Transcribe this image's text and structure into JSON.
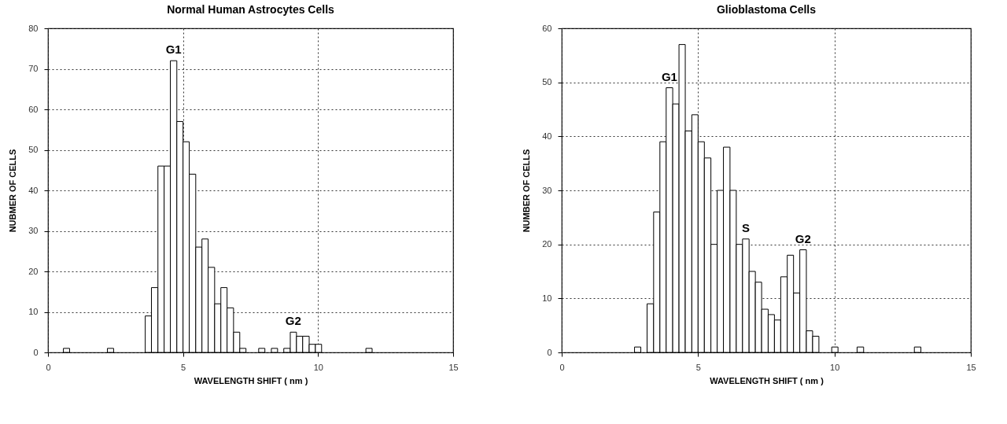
{
  "chart_data": [
    {
      "type": "histogram",
      "title": "Normal Human Astrocytes Cells",
      "xlabel": "WAVELENGTH SHIFT ( nm )",
      "ylabel": "NUBMER OF CELLS",
      "color": "#ffffff",
      "bins": [
        0.57,
        0.8,
        1.03,
        1.27,
        1.5,
        1.73,
        1.97,
        2.2,
        2.43,
        2.67,
        2.9,
        3.13,
        3.37,
        3.6,
        3.83,
        4.07,
        4.3,
        4.53,
        4.77,
        5,
        5.23,
        5.47,
        5.7,
        5.93,
        6.17,
        6.4,
        6.63,
        6.87,
        7.1,
        7.33,
        7.57,
        7.8,
        8.03,
        8.27,
        8.5,
        8.73,
        8.97,
        9.2,
        9.43,
        9.67,
        9.9,
        10.13,
        10.37,
        10.6,
        10.83,
        11.07,
        11.3,
        11.53,
        11.77,
        12
      ],
      "values": [
        1,
        0,
        0,
        0,
        0,
        0,
        0,
        1,
        0,
        0,
        0,
        0,
        0,
        9,
        16,
        46,
        46,
        72,
        57,
        52,
        44,
        26,
        28,
        21,
        12,
        16,
        11,
        5,
        1,
        0,
        0,
        1,
        0,
        1,
        0,
        1,
        5,
        4,
        4,
        2,
        2,
        0,
        0,
        0,
        0,
        0,
        0,
        0,
        1
      ],
      "xlim": [
        0,
        15
      ],
      "xticks": [
        0,
        5,
        10,
        15
      ],
      "ylim": [
        0,
        80
      ],
      "yticks": [
        0,
        10,
        20,
        30,
        40,
        50,
        60,
        70,
        80
      ],
      "grid": true,
      "annotations": [
        {
          "text": "G1",
          "x": 4.65,
          "y": 72
        },
        {
          "text": "G2",
          "x": 9.08,
          "y": 5
        }
      ]
    },
    {
      "type": "histogram",
      "title": "Glioblastoma Cells",
      "xlabel": "WAVELENGTH SHIFT ( nm )",
      "ylabel": "NUMBER OF CELLS",
      "color": "#ffffff",
      "bins": [
        2.67,
        2.9,
        3.13,
        3.37,
        3.6,
        3.83,
        4.07,
        4.3,
        4.53,
        4.77,
        5,
        5.23,
        5.47,
        5.7,
        5.93,
        6.17,
        6.4,
        6.63,
        6.87,
        7.1,
        7.33,
        7.57,
        7.8,
        8.03,
        8.27,
        8.5,
        8.73,
        8.97,
        9.2,
        9.43,
        9.67,
        9.9,
        10.13,
        10.37,
        10.6,
        10.83,
        11.07,
        11.3,
        11.53,
        11.77,
        12,
        12.23,
        12.47,
        12.7,
        12.93,
        13.17
      ],
      "values": [
        1,
        0,
        9,
        26,
        39,
        49,
        46,
        57,
        41,
        44,
        39,
        36,
        20,
        30,
        38,
        30,
        20,
        21,
        15,
        13,
        8,
        7,
        6,
        14,
        18,
        11,
        19,
        4,
        3,
        0,
        0,
        1,
        0,
        0,
        0,
        1,
        0,
        0,
        0,
        0,
        0,
        0,
        0,
        0,
        1
      ],
      "xlim": [
        0,
        15
      ],
      "xticks": [
        0,
        5,
        10,
        15
      ],
      "ylim": [
        0,
        60
      ],
      "yticks": [
        0,
        10,
        20,
        30,
        40,
        50,
        60
      ],
      "grid": true,
      "annotations": [
        {
          "text": "G1",
          "x": 3.95,
          "y": 49
        },
        {
          "text": "S",
          "x": 6.75,
          "y": 21
        },
        {
          "text": "G2",
          "x": 8.85,
          "y": 19
        }
      ]
    }
  ]
}
